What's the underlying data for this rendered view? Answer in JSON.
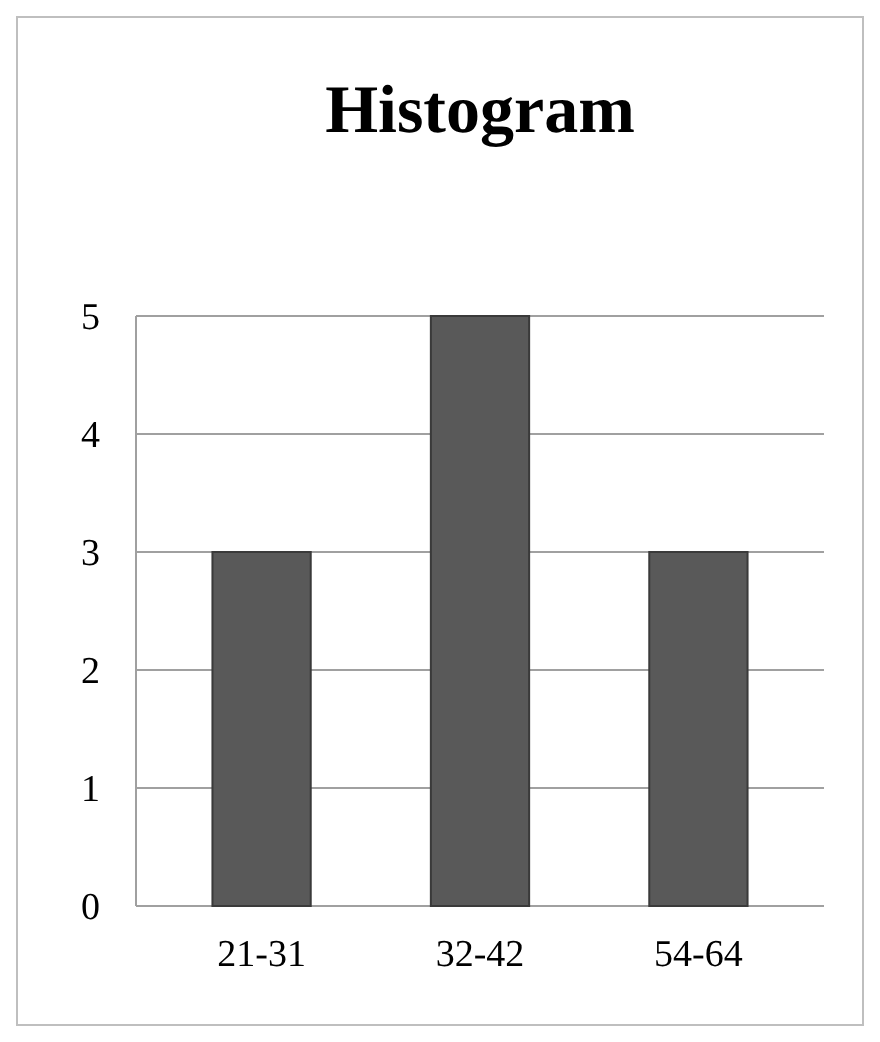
{
  "chart_data": {
    "type": "bar",
    "title": "Histogram",
    "categories": [
      "21-31",
      "32-42",
      "54-64"
    ],
    "values": [
      3,
      5,
      3
    ],
    "color": "#595959",
    "ylim": [
      0,
      5
    ],
    "yticks": [
      0,
      1,
      2,
      3,
      4,
      5
    ],
    "grid": "y"
  }
}
